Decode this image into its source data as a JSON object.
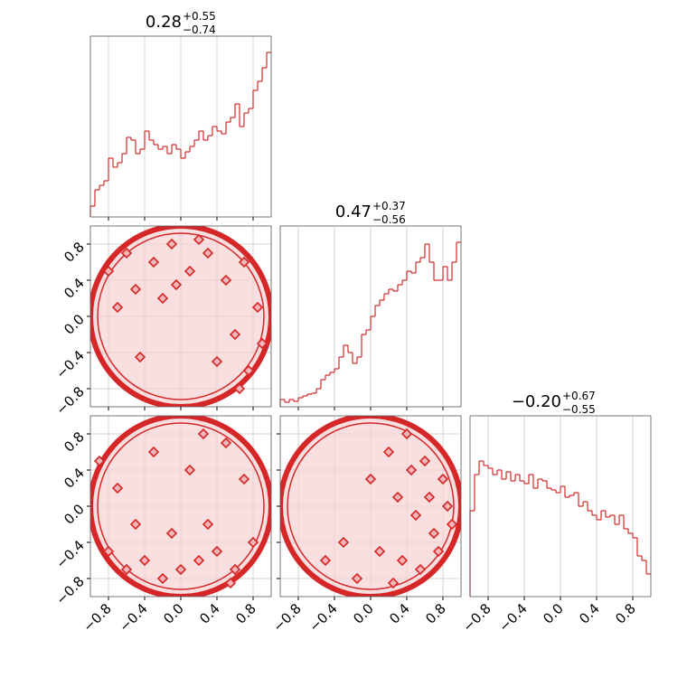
{
  "chart_data": [
    {
      "type": "histogram",
      "title": {
        "value": "0.28",
        "plus": "+0.55",
        "minus": "−0.74"
      },
      "color": "#d62728",
      "bins": [
        -1,
        -0.95,
        -0.9,
        -0.85,
        -0.8,
        -0.75,
        -0.7,
        -0.65,
        -0.6,
        -0.55,
        -0.5,
        -0.45,
        -0.4,
        -0.35,
        -0.3,
        -0.25,
        -0.2,
        -0.15,
        -0.1,
        -0.05,
        0,
        0.05,
        0.1,
        0.15,
        0.2,
        0.25,
        0.3,
        0.35,
        0.4,
        0.45,
        0.5,
        0.55,
        0.6,
        0.65,
        0.7,
        0.75,
        0.8,
        0.85,
        0.9,
        0.95,
        1
      ],
      "values": [
        12,
        30,
        35,
        40,
        65,
        55,
        60,
        70,
        88,
        85,
        70,
        75,
        95,
        85,
        80,
        75,
        78,
        70,
        80,
        75,
        65,
        72,
        78,
        85,
        95,
        85,
        90,
        100,
        95,
        92,
        105,
        110,
        125,
        100,
        115,
        120,
        140,
        150,
        165,
        182
      ],
      "xlim": [
        -1,
        1
      ],
      "ylim": [
        0,
        200
      ],
      "xticks": [
        -0.8,
        -0.4,
        0,
        0.4,
        0.8
      ],
      "grid": true
    },
    {
      "type": "scatter",
      "color": "#d62728",
      "x": [
        -0.8,
        -0.6,
        -0.5,
        -0.3,
        -0.1,
        0.1,
        0.3,
        0.5,
        0.7,
        0.85,
        -0.7,
        -0.2,
        0.2,
        0.6,
        0.9,
        0.4,
        -0.45,
        -0.05,
        0.65,
        0.75
      ],
      "y": [
        0.5,
        0.7,
        0.3,
        0.6,
        0.8,
        0.5,
        0.7,
        0.4,
        0.6,
        0.1,
        0.1,
        0.2,
        0.85,
        -0.2,
        -0.3,
        -0.5,
        -0.45,
        0.35,
        -0.8,
        -0.6
      ],
      "xlim": [
        -1,
        1
      ],
      "ylim": [
        -1,
        1
      ],
      "xticks": [
        -0.8,
        -0.4,
        0,
        0.4,
        0.8
      ],
      "yticks": [
        {
          "value": -0.8,
          "label": "−0.8"
        },
        {
          "value": -0.4,
          "label": "−0.4"
        },
        {
          "value": 0,
          "label": "0.0"
        },
        {
          "value": 0.4,
          "label": "0.4"
        },
        {
          "value": 0.8,
          "label": "0.8"
        }
      ],
      "grid": true
    },
    {
      "type": "histogram",
      "title": {
        "value": "0.47",
        "plus": "+0.37",
        "minus": "−0.56"
      },
      "color": "#d62728",
      "bins": [
        -1,
        -0.95,
        -0.9,
        -0.85,
        -0.8,
        -0.75,
        -0.7,
        -0.65,
        -0.6,
        -0.55,
        -0.5,
        -0.45,
        -0.4,
        -0.35,
        -0.3,
        -0.25,
        -0.2,
        -0.15,
        -0.1,
        -0.05,
        0,
        0.05,
        0.1,
        0.15,
        0.2,
        0.25,
        0.3,
        0.35,
        0.4,
        0.45,
        0.5,
        0.55,
        0.6,
        0.65,
        0.7,
        0.75,
        0.8,
        0.85,
        0.9,
        0.95,
        1
      ],
      "values": [
        8,
        5,
        8,
        6,
        10,
        12,
        14,
        15,
        20,
        30,
        35,
        38,
        42,
        55,
        68,
        60,
        48,
        55,
        80,
        85,
        100,
        112,
        118,
        125,
        130,
        128,
        135,
        140,
        150,
        148,
        160,
        165,
        180,
        160,
        140,
        140,
        155,
        140,
        160,
        182
      ],
      "xlim": [
        -1,
        1
      ],
      "ylim": [
        0,
        200
      ],
      "xticks": [
        -0.8,
        -0.4,
        0,
        0.4,
        0.8
      ],
      "grid": true
    },
    {
      "type": "scatter",
      "color": "#d62728",
      "x": [
        -0.8,
        -0.6,
        -0.4,
        -0.2,
        0,
        0.2,
        0.4,
        0.6,
        0.8,
        -0.5,
        -0.1,
        0.3,
        0.7,
        -0.9,
        -0.3,
        0.1,
        0.5,
        -0.7,
        0.25,
        0.55
      ],
      "y": [
        -0.5,
        -0.7,
        -0.6,
        -0.8,
        -0.7,
        -0.6,
        -0.5,
        -0.7,
        -0.4,
        -0.2,
        -0.3,
        -0.2,
        0.3,
        0.5,
        0.6,
        0.4,
        0.7,
        0.2,
        0.8,
        -0.85
      ],
      "xlim": [
        -1,
        1
      ],
      "ylim": [
        -1,
        1
      ],
      "xticks": [
        {
          "value": -0.8,
          "label": "−0.8"
        },
        {
          "value": -0.4,
          "label": "−0.4"
        },
        {
          "value": 0,
          "label": "0.0"
        },
        {
          "value": 0.4,
          "label": "0.4"
        },
        {
          "value": 0.8,
          "label": "0.8"
        }
      ],
      "yticks": [
        {
          "value": -0.8,
          "label": "−0.8"
        },
        {
          "value": -0.4,
          "label": "−0.4"
        },
        {
          "value": 0,
          "label": "0.0"
        },
        {
          "value": 0.4,
          "label": "0.4"
        },
        {
          "value": 0.8,
          "label": "0.8"
        }
      ],
      "grid": true
    },
    {
      "type": "scatter",
      "color": "#d62728",
      "x": [
        0.2,
        0.4,
        0.6,
        0.8,
        0.3,
        0.5,
        0.7,
        0.9,
        0.1,
        0.35,
        0.55,
        0.75,
        -0.3,
        -0.5,
        0.0,
        0.45,
        0.65,
        0.85,
        -0.15,
        0.25
      ],
      "y": [
        0.6,
        0.8,
        0.5,
        0.3,
        0.1,
        -0.1,
        -0.3,
        -0.2,
        -0.5,
        -0.6,
        -0.7,
        -0.5,
        -0.4,
        -0.6,
        0.3,
        0.4,
        0.1,
        0.0,
        -0.8,
        -0.85
      ],
      "xlim": [
        -1,
        1
      ],
      "ylim": [
        -1,
        1
      ],
      "xticks": [
        {
          "value": -0.8,
          "label": "−0.8"
        },
        {
          "value": -0.4,
          "label": "−0.4"
        },
        {
          "value": 0,
          "label": "0.0"
        },
        {
          "value": 0.4,
          "label": "0.4"
        },
        {
          "value": 0.8,
          "label": "0.8"
        }
      ],
      "yticks": [
        -0.8,
        -0.4,
        0,
        0.4,
        0.8
      ],
      "grid": true
    },
    {
      "type": "histogram",
      "title": {
        "value": "−0.20",
        "plus": "+0.67",
        "minus": "−0.55"
      },
      "color": "#d62728",
      "bins": [
        -1,
        -0.95,
        -0.9,
        -0.85,
        -0.8,
        -0.75,
        -0.7,
        -0.65,
        -0.6,
        -0.55,
        -0.5,
        -0.45,
        -0.4,
        -0.35,
        -0.3,
        -0.25,
        -0.2,
        -0.15,
        -0.1,
        -0.05,
        0,
        0.05,
        0.1,
        0.15,
        0.2,
        0.25,
        0.3,
        0.35,
        0.4,
        0.45,
        0.5,
        0.55,
        0.6,
        0.65,
        0.7,
        0.75,
        0.8,
        0.85,
        0.9,
        0.95,
        1
      ],
      "values": [
        95,
        135,
        150,
        145,
        142,
        135,
        140,
        130,
        138,
        128,
        135,
        128,
        125,
        135,
        120,
        130,
        128,
        120,
        118,
        115,
        122,
        110,
        112,
        115,
        100,
        105,
        95,
        90,
        85,
        95,
        88,
        90,
        80,
        90,
        75,
        70,
        65,
        45,
        40,
        25
      ],
      "xlim": [
        -1,
        1
      ],
      "ylim": [
        0,
        200
      ],
      "xticks": [
        {
          "value": -0.8,
          "label": "−0.8"
        },
        {
          "value": -0.4,
          "label": "−0.4"
        },
        {
          "value": 0,
          "label": "0.0"
        },
        {
          "value": 0.4,
          "label": "0.4"
        },
        {
          "value": 0.8,
          "label": "0.8"
        }
      ],
      "grid": true
    }
  ]
}
